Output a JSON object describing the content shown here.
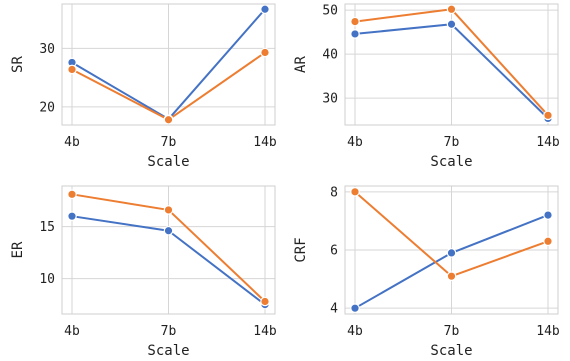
{
  "chart_data": [
    {
      "type": "line",
      "categories": [
        "4b",
        "7b",
        "14b"
      ],
      "xlabel": "Scale",
      "ylabel": "SR",
      "ylim": [
        16.9,
        37.6
      ],
      "yticks": [
        20,
        30
      ],
      "grid": true,
      "series": [
        {
          "values": [
            27.6,
            17.9,
            36.7
          ],
          "color": "#4472c4"
        },
        {
          "values": [
            26.4,
            17.8,
            29.3
          ],
          "color": "#ed7d31"
        }
      ]
    },
    {
      "type": "line",
      "categories": [
        "4b",
        "7b",
        "14b"
      ],
      "xlabel": "Scale",
      "ylabel": "AR",
      "ylim": [
        23.9,
        51.4
      ],
      "yticks": [
        30,
        40,
        50
      ],
      "grid": true,
      "series": [
        {
          "values": [
            44.6,
            46.8,
            25.4
          ],
          "color": "#4472c4"
        },
        {
          "values": [
            47.4,
            50.2,
            26.1
          ],
          "color": "#ed7d31"
        }
      ]
    },
    {
      "type": "line",
      "categories": [
        "4b",
        "7b",
        "14b"
      ],
      "xlabel": "Scale",
      "ylabel": "ER",
      "ylim": [
        6.6,
        18.9
      ],
      "yticks": [
        10,
        15
      ],
      "grid": true,
      "series": [
        {
          "values": [
            16.0,
            14.6,
            7.5
          ],
          "color": "#4472c4"
        },
        {
          "values": [
            18.1,
            16.6,
            7.8
          ],
          "color": "#ed7d31"
        }
      ]
    },
    {
      "type": "line",
      "categories": [
        "4b",
        "7b",
        "14b"
      ],
      "xlabel": "Scale",
      "ylabel": "CRF",
      "ylim": [
        3.8,
        8.2
      ],
      "yticks": [
        4,
        6,
        8
      ],
      "grid": true,
      "series": [
        {
          "values": [
            4.0,
            5.9,
            7.2
          ],
          "color": "#4472c4"
        },
        {
          "values": [
            8.0,
            5.1,
            6.3
          ],
          "color": "#ed7d31"
        }
      ]
    }
  ]
}
